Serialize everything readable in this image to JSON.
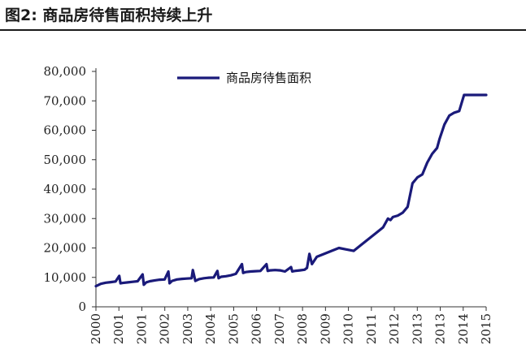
{
  "figure": {
    "title": "图2:  商品房待售面积持续上升"
  },
  "chart_data": {
    "type": "line",
    "title": "",
    "xlabel": "",
    "ylabel": "",
    "ylim": [
      0,
      80000
    ],
    "y_ticks": [
      "0",
      "10,000",
      "20,000",
      "30,000",
      "40,000",
      "50,000",
      "60,000",
      "70,000",
      "80,000"
    ],
    "x_ticks": [
      "2000",
      "2001",
      "2001",
      "2002",
      "2003",
      "2004",
      "2005",
      "2006",
      "2007",
      "2008",
      "2009",
      "2010",
      "2011",
      "2012",
      "2013",
      "2013",
      "2014",
      "2015"
    ],
    "x_range": [
      2000,
      2015.9
    ],
    "grid": false,
    "legend_position": "top-center",
    "series": [
      {
        "name": "商品房待售面积",
        "color": "#1a1a7a",
        "x": [
          2000.0,
          2000.2,
          2000.4,
          2000.6,
          2000.8,
          2000.95,
          2001.0,
          2001.1,
          2001.3,
          2001.5,
          2001.7,
          2001.9,
          2001.95,
          2002.05,
          2002.2,
          2002.4,
          2002.6,
          2002.8,
          2002.95,
          2003.0,
          2003.1,
          2003.3,
          2003.5,
          2003.7,
          2003.9,
          2003.95,
          2004.05,
          2004.2,
          2004.4,
          2004.6,
          2004.8,
          2004.95,
          2005.0,
          2005.1,
          2005.3,
          2005.5,
          2005.7,
          2005.95,
          2006.0,
          2006.1,
          2006.3,
          2006.5,
          2006.7,
          2006.95,
          2007.0,
          2007.1,
          2007.3,
          2007.5,
          2007.7,
          2007.95,
          2008.0,
          2008.1,
          2008.3,
          2008.5,
          2008.6,
          2008.7,
          2008.8,
          2009.0,
          2009.3,
          2009.6,
          2009.9,
          2010.2,
          2010.5,
          2010.8,
          2011.1,
          2011.4,
          2011.7,
          2011.9,
          2012.0,
          2012.1,
          2012.3,
          2012.5,
          2012.7,
          2012.9,
          2013.0,
          2013.1,
          2013.3,
          2013.5,
          2013.7,
          2013.9,
          2014.0,
          2014.2,
          2014.4,
          2014.6,
          2014.8,
          2015.0,
          2015.2,
          2015.4,
          2015.6,
          2015.8,
          2015.9
        ],
        "values": [
          7000,
          7800,
          8200,
          8400,
          8600,
          10500,
          8000,
          8100,
          8300,
          8500,
          8700,
          11000,
          7500,
          8300,
          8700,
          9000,
          9200,
          9300,
          12000,
          8000,
          8800,
          9300,
          9500,
          9600,
          9700,
          12500,
          8800,
          9400,
          9700,
          9900,
          10000,
          12200,
          9700,
          10200,
          10400,
          10700,
          11200,
          14500,
          11500,
          11800,
          12000,
          12100,
          12200,
          14500,
          12200,
          12400,
          12500,
          12400,
          12000,
          13500,
          12000,
          12200,
          12400,
          12600,
          13200,
          18000,
          14500,
          17000,
          18000,
          19000,
          20000,
          19500,
          19000,
          21000,
          23000,
          25000,
          27000,
          30000,
          29500,
          30500,
          31000,
          32000,
          34000,
          42000,
          43000,
          44000,
          45000,
          49000,
          52000,
          54000,
          57000,
          62000,
          65000,
          66000,
          66500,
          72000,
          72000,
          72000,
          72000,
          72000,
          72000
        ]
      }
    ]
  }
}
